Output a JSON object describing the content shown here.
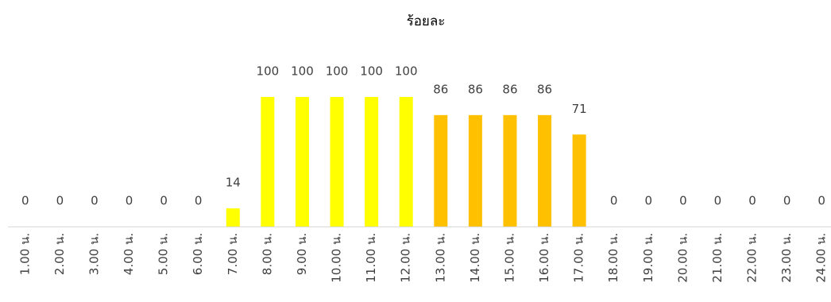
{
  "chart_data": {
    "type": "bar",
    "title": "ร้อยละ",
    "categories": [
      "1.00 น.",
      "2.00 น.",
      "3.00 น.",
      "4.00 น.",
      "5.00 น.",
      "6.00 น.",
      "7.00 น.",
      "8.00 น.",
      "9.00 น.",
      "10.00 น.",
      "11.00 น.",
      "12.00 น.",
      "13.00 น.",
      "14.00 น.",
      "15.00 น.",
      "16.00 น.",
      "17.00 น.",
      "18.00 น.",
      "19.00 น.",
      "20.00 น.",
      "21.00 น.",
      "22.00 น.",
      "23.00 น.",
      "24.00 น."
    ],
    "values": [
      0,
      0,
      0,
      0,
      0,
      0,
      14,
      100,
      100,
      100,
      100,
      100,
      86,
      86,
      86,
      86,
      71,
      0,
      0,
      0,
      0,
      0,
      0,
      0
    ],
    "colors": [
      null,
      null,
      null,
      null,
      null,
      null,
      "#ffff00",
      "#ffff00",
      "#ffff00",
      "#ffff00",
      "#ffff00",
      "#ffff00",
      "#ffc000",
      "#ffc000",
      "#ffc000",
      "#ffc000",
      "#ffc000",
      null,
      null,
      null,
      null,
      null,
      null,
      null
    ],
    "ylim": [
      0,
      100
    ]
  }
}
